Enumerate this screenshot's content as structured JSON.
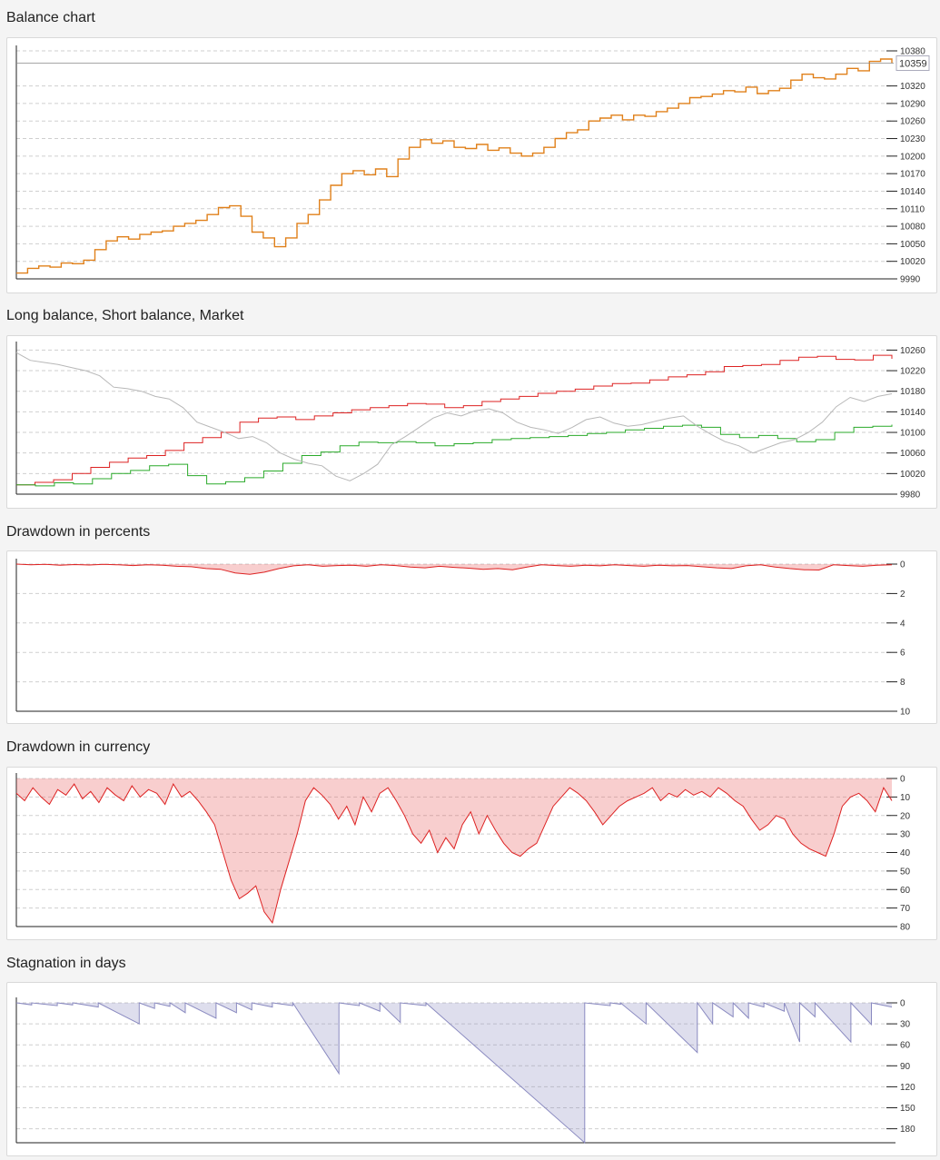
{
  "chart_data": [
    {
      "type": "line",
      "title": "Balance chart",
      "y_ticks": [
        10380,
        10320,
        10290,
        10260,
        10230,
        10200,
        10170,
        10140,
        10110,
        10080,
        10050,
        10020,
        9990
      ],
      "ylim": [
        9990,
        10380
      ],
      "grid": true,
      "last_value_label": "10359",
      "series": [
        {
          "color": "#e0801a",
          "values": [
            10000,
            10008,
            10012,
            10010,
            10017,
            10016,
            10022,
            10040,
            10055,
            10062,
            10058,
            10066,
            10070,
            10072,
            10080,
            10085,
            10090,
            10100,
            10112,
            10115,
            10097,
            10070,
            10060,
            10045,
            10060,
            10085,
            10100,
            10125,
            10150,
            10170,
            10175,
            10168,
            10178,
            10165,
            10195,
            10215,
            10228,
            10222,
            10226,
            10215,
            10213,
            10220,
            10210,
            10214,
            10205,
            10200,
            10205,
            10215,
            10230,
            10240,
            10245,
            10260,
            10265,
            10270,
            10262,
            10270,
            10268,
            10276,
            10282,
            10290,
            10300,
            10302,
            10306,
            10312,
            10310,
            10318,
            10307,
            10312,
            10316,
            10330,
            10340,
            10334,
            10332,
            10340,
            10350,
            10346,
            10362,
            10366,
            10359
          ]
        }
      ]
    },
    {
      "type": "line",
      "title": "Long balance, Short balance, Market",
      "y_ticks": [
        10260,
        10220,
        10180,
        10140,
        10100,
        10060,
        10020,
        9980
      ],
      "ylim": [
        9980,
        10266
      ],
      "grid": true,
      "series": [
        {
          "color": "#dd2222",
          "values": [
            9998,
            10003,
            10008,
            10020,
            10032,
            10042,
            10050,
            10055,
            10065,
            10080,
            10090,
            10100,
            10120,
            10128,
            10130,
            10125,
            10132,
            10138,
            10144,
            10148,
            10152,
            10156,
            10155,
            10148,
            10152,
            10160,
            10165,
            10170,
            10176,
            10180,
            10184,
            10190,
            10195,
            10196,
            10202,
            10208,
            10212,
            10218,
            10228,
            10230,
            10232,
            10240,
            10246,
            10248,
            10242,
            10241,
            10250,
            10243
          ]
        },
        {
          "color": "#2aaa2a",
          "values": [
            9998,
            9996,
            10002,
            10000,
            10010,
            10020,
            10026,
            10035,
            10038,
            10016,
            10000,
            10004,
            10012,
            10025,
            10040,
            10055,
            10062,
            10074,
            10081,
            10080,
            10082,
            10080,
            10074,
            10078,
            10080,
            10086,
            10088,
            10090,
            10092,
            10094,
            10098,
            10100,
            10105,
            10108,
            10112,
            10114,
            10110,
            10096,
            10090,
            10094,
            10088,
            10082,
            10086,
            10100,
            10110,
            10112,
            10115
          ]
        },
        {
          "color": "#b8b8b8",
          "values": [
            10255,
            10240,
            10236,
            10232,
            10226,
            10220,
            10210,
            10188,
            10185,
            10180,
            10170,
            10165,
            10148,
            10120,
            10110,
            10100,
            10088,
            10092,
            10080,
            10060,
            10048,
            10040,
            10035,
            10015,
            10006,
            10020,
            10038,
            10076,
            10092,
            10110,
            10128,
            10138,
            10132,
            10142,
            10146,
            10138,
            10120,
            10110,
            10105,
            10098,
            10110,
            10125,
            10130,
            10118,
            10112,
            10115,
            10122,
            10128,
            10132,
            10112,
            10096,
            10082,
            10074,
            10060,
            10070,
            10080,
            10086,
            10100,
            10120,
            10150,
            10168,
            10160,
            10170,
            10175
          ]
        }
      ]
    },
    {
      "type": "area",
      "title": "Drawdown in percents",
      "y_ticks": [
        0,
        2,
        4,
        6,
        8,
        10
      ],
      "ylim": [
        0,
        10
      ],
      "grid": true,
      "series": [
        {
          "color": "#dd2222",
          "values": [
            0,
            0.05,
            0.02,
            0.08,
            0.03,
            0.06,
            0.02,
            0.05,
            0.1,
            0.05,
            0.08,
            0.15,
            0.18,
            0.3,
            0.35,
            0.6,
            0.7,
            0.55,
            0.3,
            0.12,
            0.05,
            0.15,
            0.1,
            0.08,
            0.15,
            0.05,
            0.1,
            0.2,
            0.25,
            0.15,
            0.22,
            0.28,
            0.35,
            0.3,
            0.38,
            0.2,
            0.05,
            0.1,
            0.15,
            0.08,
            0.12,
            0.05,
            0.1,
            0.15,
            0.08,
            0.12,
            0.1,
            0.18,
            0.25,
            0.3,
            0.12,
            0.05,
            0.2,
            0.3,
            0.38,
            0.4,
            0.05,
            0.1,
            0.15,
            0.08,
            0.05
          ]
        }
      ]
    },
    {
      "type": "area",
      "title": "Drawdown in currency",
      "y_ticks": [
        0,
        10,
        20,
        30,
        40,
        50,
        60,
        70,
        80
      ],
      "ylim": [
        0,
        80
      ],
      "grid": true,
      "series": [
        {
          "color": "#dd2222",
          "values": [
            8,
            12,
            5,
            10,
            14,
            6,
            9,
            3,
            11,
            7,
            13,
            5,
            9,
            12,
            4,
            10,
            6,
            8,
            14,
            3,
            10,
            7,
            12,
            18,
            25,
            40,
            55,
            65,
            62,
            58,
            72,
            78,
            60,
            45,
            30,
            12,
            5,
            9,
            14,
            22,
            15,
            25,
            10,
            18,
            8,
            5,
            12,
            20,
            30,
            35,
            28,
            40,
            32,
            38,
            25,
            18,
            30,
            20,
            28,
            35,
            40,
            42,
            38,
            35,
            25,
            15,
            10,
            5,
            8,
            12,
            18,
            25,
            20,
            15,
            12,
            10,
            8,
            5,
            12,
            8,
            10,
            6,
            9,
            7,
            10,
            5,
            8,
            12,
            15,
            22,
            28,
            25,
            20,
            22,
            30,
            35,
            38,
            40,
            42,
            30,
            15,
            10,
            8,
            12,
            18,
            5,
            12
          ]
        }
      ]
    },
    {
      "type": "area",
      "title": "Stagnation in days",
      "y_ticks": [
        0,
        30,
        60,
        90,
        120,
        150,
        180
      ],
      "ylim": [
        0,
        200
      ],
      "grid": true,
      "series": [
        {
          "color": "#8a8ac0",
          "values": [
            [
              0,
              0
            ],
            [
              3,
              3
            ],
            [
              3,
              0
            ],
            [
              8,
              4
            ],
            [
              8,
              0
            ],
            [
              11,
              3
            ],
            [
              11,
              0
            ],
            [
              16,
              6
            ],
            [
              16,
              0
            ],
            [
              24,
              30
            ],
            [
              24,
              0
            ],
            [
              27,
              8
            ],
            [
              27,
              0
            ],
            [
              30,
              5
            ],
            [
              30,
              0
            ],
            [
              33,
              14
            ],
            [
              33,
              0
            ],
            [
              39,
              22
            ],
            [
              39,
              0
            ],
            [
              43,
              14
            ],
            [
              43,
              0
            ],
            [
              46,
              10
            ],
            [
              46,
              0
            ],
            [
              50,
              6
            ],
            [
              50,
              0
            ],
            [
              54,
              4
            ],
            [
              54,
              0
            ],
            [
              63,
              101
            ],
            [
              63,
              0
            ],
            [
              67,
              4
            ],
            [
              67,
              0
            ],
            [
              71,
              12
            ],
            [
              71,
              0
            ],
            [
              75,
              28
            ],
            [
              75,
              0
            ],
            [
              80,
              4
            ],
            [
              80,
              0
            ],
            [
              111,
              200
            ],
            [
              111,
              0
            ],
            [
              116,
              4
            ],
            [
              116,
              0
            ],
            [
              118,
              2
            ],
            [
              118,
              0
            ],
            [
              123,
              30
            ],
            [
              123,
              0
            ],
            [
              133,
              71
            ],
            [
              133,
              0
            ],
            [
              136,
              30
            ],
            [
              136,
              0
            ],
            [
              140,
              20
            ],
            [
              140,
              0
            ],
            [
              143,
              22
            ],
            [
              143,
              0
            ],
            [
              146,
              6
            ],
            [
              146,
              0
            ],
            [
              150,
              12
            ],
            [
              150,
              0
            ],
            [
              153,
              56
            ],
            [
              153,
              0
            ],
            [
              156,
              20
            ],
            [
              156,
              0
            ],
            [
              163,
              56
            ],
            [
              163,
              0
            ],
            [
              167,
              31
            ],
            [
              167,
              0
            ],
            [
              171,
              6
            ]
          ]
        }
      ]
    }
  ]
}
